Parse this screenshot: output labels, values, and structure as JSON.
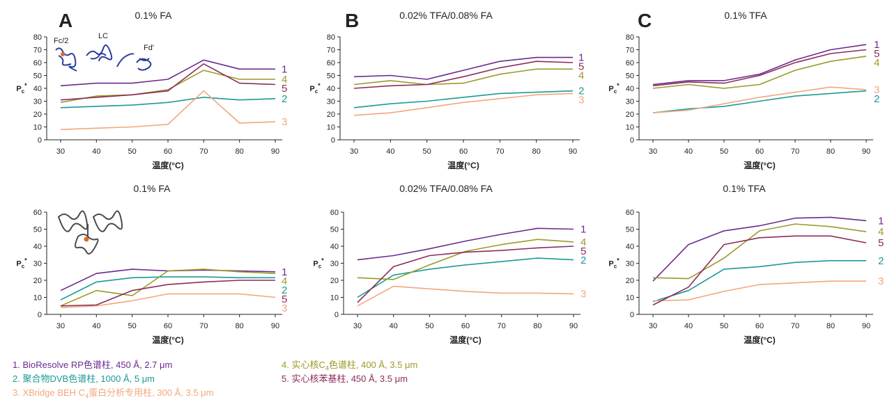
{
  "colors": {
    "s1": "#6b2a8f",
    "s2": "#1a9a96",
    "s3": "#f2a77c",
    "s4": "#9a9a2a",
    "s5": "#8c2b5a",
    "axis": "#222222"
  },
  "shared": {
    "ylabel": "Pc*",
    "xlabel": "温度(°C)"
  },
  "panel_letters": [
    "A",
    "B",
    "C"
  ],
  "structure_labels": {
    "fc2": "Fc/2",
    "lc": "LC",
    "fd": "Fd'"
  },
  "legend": [
    {
      "num": "1.",
      "text": "BioResolve RP色谱柱, 450 Å, 2.7 μm",
      "color": "#6b2a8f"
    },
    {
      "num": "2.",
      "text": "聚合物DVB色谱柱, 1000 Å, 5 μm",
      "color": "#1a9a96"
    },
    {
      "num": "3.",
      "text_pre": "XBridge BEH C",
      "sub": "4",
      "text_post": "蛋白分析专用柱, 300 Å, 3.5 μm",
      "color": "#f2a77c"
    },
    {
      "num": "4.",
      "text_pre": "实心核C",
      "sub": "4",
      "text_post": "色谱柱, 400 Å, 3.5 μm",
      "color": "#9a9a2a"
    },
    {
      "num": "5.",
      "text": "实心核苯基柱, 450 Å, 3.5 μm",
      "color": "#8c2b5a"
    }
  ],
  "chart_data": [
    {
      "id": "top-left",
      "type": "line",
      "title": "0.1% FA",
      "xlabel": "温度(°C)",
      "ylabel": "Pc*",
      "x": [
        30,
        40,
        50,
        60,
        70,
        80,
        90
      ],
      "ylim": [
        0,
        80
      ],
      "yticks": [
        0,
        10,
        20,
        30,
        40,
        50,
        60,
        70,
        80
      ],
      "series": [
        {
          "name": "1",
          "values": [
            42,
            44,
            44,
            47,
            62,
            55,
            55
          ]
        },
        {
          "name": "2",
          "values": [
            25,
            26,
            27,
            29,
            33,
            31,
            32
          ]
        },
        {
          "name": "3",
          "values": [
            8,
            9,
            10,
            12,
            38,
            13,
            14
          ]
        },
        {
          "name": "4",
          "values": [
            29,
            34,
            35,
            39,
            54,
            47,
            47
          ]
        },
        {
          "name": "5",
          "values": [
            31,
            33,
            35,
            38,
            59,
            44,
            43
          ]
        }
      ],
      "label_order": [
        "1",
        "4",
        "5",
        "2",
        "3"
      ]
    },
    {
      "id": "top-middle",
      "type": "line",
      "title": "0.02% TFA/0.08% FA",
      "xlabel": "温度(°C)",
      "ylabel": "Pc*",
      "x": [
        30,
        40,
        50,
        60,
        70,
        80,
        90
      ],
      "ylim": [
        0,
        80
      ],
      "yticks": [
        0,
        10,
        20,
        30,
        40,
        50,
        60,
        70,
        80
      ],
      "series": [
        {
          "name": "1",
          "values": [
            49,
            50,
            47,
            54,
            61,
            64,
            64
          ]
        },
        {
          "name": "2",
          "values": [
            25,
            28,
            30,
            33,
            36,
            37,
            38
          ]
        },
        {
          "name": "3",
          "values": [
            19,
            21,
            25,
            29,
            32,
            35,
            36
          ]
        },
        {
          "name": "4",
          "values": [
            43,
            46,
            43,
            44,
            51,
            55,
            55
          ]
        },
        {
          "name": "5",
          "values": [
            40,
            42,
            43,
            49,
            56,
            61,
            60
          ]
        }
      ],
      "label_order": [
        "1",
        "5",
        "4",
        "2",
        "3"
      ]
    },
    {
      "id": "top-right",
      "type": "line",
      "title": "0.1% TFA",
      "xlabel": "温度(°C)",
      "ylabel": "Pc*",
      "x": [
        30,
        40,
        50,
        60,
        70,
        80,
        90
      ],
      "ylim": [
        0,
        80
      ],
      "yticks": [
        0,
        10,
        20,
        30,
        40,
        50,
        60,
        70,
        80
      ],
      "series": [
        {
          "name": "1",
          "values": [
            43,
            46,
            46,
            51,
            62,
            70,
            74
          ]
        },
        {
          "name": "2",
          "values": [
            21,
            24,
            26,
            30,
            34,
            36,
            38
          ]
        },
        {
          "name": "3",
          "values": [
            21,
            23,
            28,
            33,
            37,
            41,
            39
          ]
        },
        {
          "name": "4",
          "values": [
            40,
            43,
            40,
            43,
            54,
            61,
            65
          ]
        },
        {
          "name": "5",
          "values": [
            42,
            45,
            44,
            50,
            60,
            67,
            70
          ]
        }
      ],
      "label_order": [
        "1",
        "5",
        "4",
        "3",
        "2"
      ]
    },
    {
      "id": "bottom-left",
      "type": "line",
      "title": "0.1% FA",
      "xlabel": "温度(°C)",
      "ylabel": "Pc*",
      "x": [
        30,
        40,
        50,
        60,
        70,
        80,
        90
      ],
      "ylim": [
        0,
        60
      ],
      "yticks": [
        0,
        10,
        20,
        30,
        40,
        50,
        60
      ],
      "series": [
        {
          "name": "1",
          "values": [
            14,
            24,
            26.5,
            25.5,
            26,
            25.5,
            25
          ]
        },
        {
          "name": "2",
          "values": [
            8.5,
            19,
            21.5,
            22,
            22,
            21.5,
            21.5
          ]
        },
        {
          "name": "3",
          "values": [
            4,
            5,
            8,
            12,
            12,
            12,
            10
          ]
        },
        {
          "name": "4",
          "values": [
            5,
            14,
            11,
            25.5,
            26.5,
            25,
            24
          ]
        },
        {
          "name": "5",
          "values": [
            5,
            5.5,
            14,
            17.5,
            19,
            20,
            20
          ]
        }
      ],
      "label_order": [
        "1",
        "4",
        "2",
        "5",
        "3"
      ]
    },
    {
      "id": "bottom-middle",
      "type": "line",
      "title": "0.02% TFA/0.08% FA",
      "xlabel": "温度(°C)",
      "ylabel": "Pc*",
      "x": [
        30,
        40,
        50,
        60,
        70,
        80,
        90
      ],
      "ylim": [
        0,
        60
      ],
      "yticks": [
        0,
        10,
        20,
        30,
        40,
        50,
        60
      ],
      "series": [
        {
          "name": "1",
          "values": [
            32,
            34.5,
            38.5,
            43,
            47,
            50.5,
            50
          ]
        },
        {
          "name": "2",
          "values": [
            10,
            23,
            26.5,
            29,
            31,
            33,
            32
          ]
        },
        {
          "name": "3",
          "values": [
            5,
            16.5,
            15,
            13.5,
            12.5,
            12.5,
            12
          ]
        },
        {
          "name": "4",
          "values": [
            21.5,
            20.5,
            29,
            37,
            41,
            44,
            42.5
          ]
        },
        {
          "name": "5",
          "values": [
            7,
            28,
            34.5,
            36.5,
            37.5,
            39,
            40
          ]
        }
      ],
      "label_order": [
        "1",
        "4",
        "5",
        "2",
        "3"
      ]
    },
    {
      "id": "bottom-right",
      "type": "line",
      "title": "0.1% TFA",
      "xlabel": "温度(°C)",
      "ylabel": "Pc*",
      "x": [
        30,
        40,
        50,
        60,
        70,
        80,
        90
      ],
      "ylim": [
        0,
        60
      ],
      "yticks": [
        0,
        10,
        20,
        30,
        40,
        50,
        60
      ],
      "series": [
        {
          "name": "1",
          "values": [
            19.5,
            41,
            49,
            52,
            56.5,
            57,
            55
          ]
        },
        {
          "name": "2",
          "values": [
            7.5,
            14,
            26.5,
            28,
            30.5,
            31.5,
            31.5
          ]
        },
        {
          "name": "3",
          "values": [
            8,
            8.5,
            13.5,
            17.5,
            18.5,
            19.5,
            19.5
          ]
        },
        {
          "name": "4",
          "values": [
            21.5,
            21,
            33,
            49,
            53,
            51.5,
            48.5
          ]
        },
        {
          "name": "5",
          "values": [
            5.5,
            16,
            41,
            45,
            46,
            46,
            42
          ]
        }
      ],
      "label_order": [
        "1",
        "4",
        "5",
        "2",
        "3"
      ]
    }
  ]
}
